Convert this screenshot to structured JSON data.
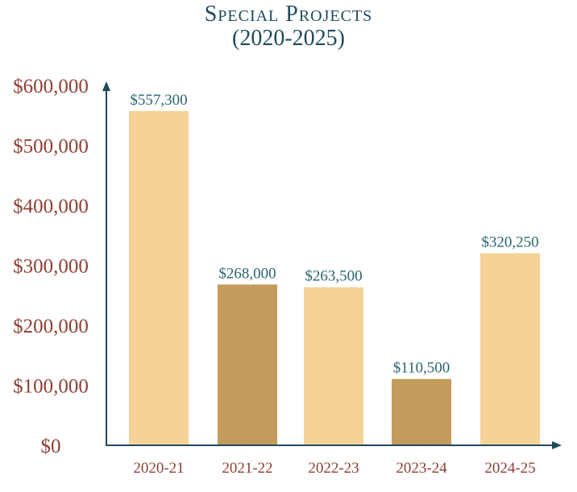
{
  "chart_data": {
    "type": "bar",
    "title": "Special Projects",
    "subtitle": "(2020-2025)",
    "xlabel": "",
    "ylabel": "",
    "categories": [
      "2020-21",
      "2021-22",
      "2022-23",
      "2023-24",
      "2024-25"
    ],
    "values": [
      557300,
      268000,
      263500,
      110500,
      320250
    ],
    "data_labels": [
      "$557,300",
      "$268,000",
      "$263,500",
      "$110,500",
      "$320,250"
    ],
    "bar_colors": [
      "#f5d398",
      "#c39b5d",
      "#f5d398",
      "#c39b5d",
      "#f5d398"
    ],
    "ylim": [
      0,
      600000
    ],
    "yticks": [
      0,
      100000,
      200000,
      300000,
      400000,
      500000,
      600000
    ],
    "ytick_labels": [
      "$0",
      "$100,000",
      "$200,000",
      "$300,000",
      "$400,000",
      "$500,000",
      "$600,000"
    ],
    "grid": false,
    "legend": "none",
    "colors": {
      "title": "#1f4a5c",
      "axis": "#1f4a5c",
      "tick_text": "#8e3f33",
      "data_label": "#2a6470"
    }
  }
}
